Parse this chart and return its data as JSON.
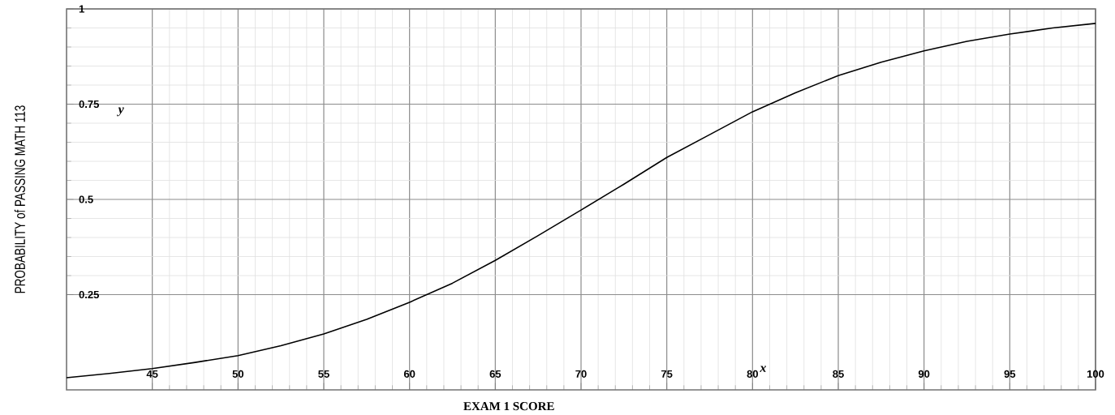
{
  "chart_data": {
    "type": "line",
    "xlabel": "EXAM 1 SCORE",
    "ylabel": "PROBABILITY of PASSING MATH 113",
    "annotations": [
      "y",
      "x"
    ],
    "x": [
      40,
      42.5,
      45,
      47.5,
      50,
      52.5,
      55,
      57.5,
      60,
      62.5,
      65,
      67.5,
      70,
      72.5,
      75,
      77.5,
      80,
      82.5,
      85,
      87.5,
      90,
      92.5,
      95,
      97.5,
      100
    ],
    "values": [
      0.032,
      0.043,
      0.056,
      0.072,
      0.09,
      0.116,
      0.147,
      0.185,
      0.23,
      0.28,
      0.34,
      0.405,
      0.472,
      0.54,
      0.61,
      0.67,
      0.73,
      0.78,
      0.825,
      0.86,
      0.89,
      0.915,
      0.934,
      0.95,
      0.962
    ],
    "color": "#000000",
    "xlim": [
      40,
      100
    ],
    "ylim": [
      0,
      1
    ],
    "xticks": [
      45,
      50,
      55,
      60,
      65,
      70,
      75,
      80,
      85,
      90,
      95,
      100
    ],
    "yticks": [
      0.25,
      0.5,
      0.75,
      1
    ],
    "grid": true,
    "marker": "none",
    "line_style": "solid"
  }
}
